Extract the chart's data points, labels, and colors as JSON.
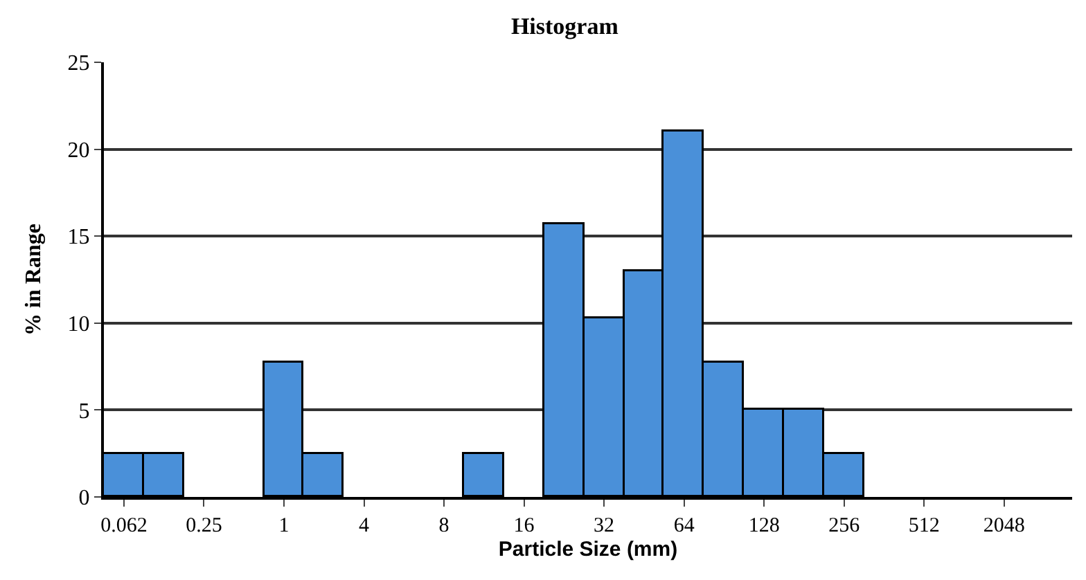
{
  "chart_data": {
    "type": "bar",
    "title": "Histogram",
    "xlabel": "Particle Size (mm)",
    "ylabel": "% in Range",
    "categories": [
      "0.062",
      null,
      "0.25",
      null,
      "1",
      null,
      "4",
      null,
      "8",
      null,
      "16",
      null,
      "32",
      null,
      "64",
      null,
      "128",
      null,
      "256",
      null,
      "512",
      null,
      "2048",
      null
    ],
    "values": [
      2.5,
      2.5,
      null,
      null,
      7.7,
      2.5,
      null,
      null,
      null,
      2.5,
      null,
      15.7,
      10.3,
      13.0,
      21.0,
      7.7,
      5.0,
      5.0,
      2.5,
      null,
      null,
      null,
      null,
      null
    ],
    "color": "#4a90d9",
    "ylim": [
      0,
      25
    ],
    "yticks": [
      0,
      5,
      10,
      15,
      20,
      25
    ],
    "grid": "y"
  }
}
